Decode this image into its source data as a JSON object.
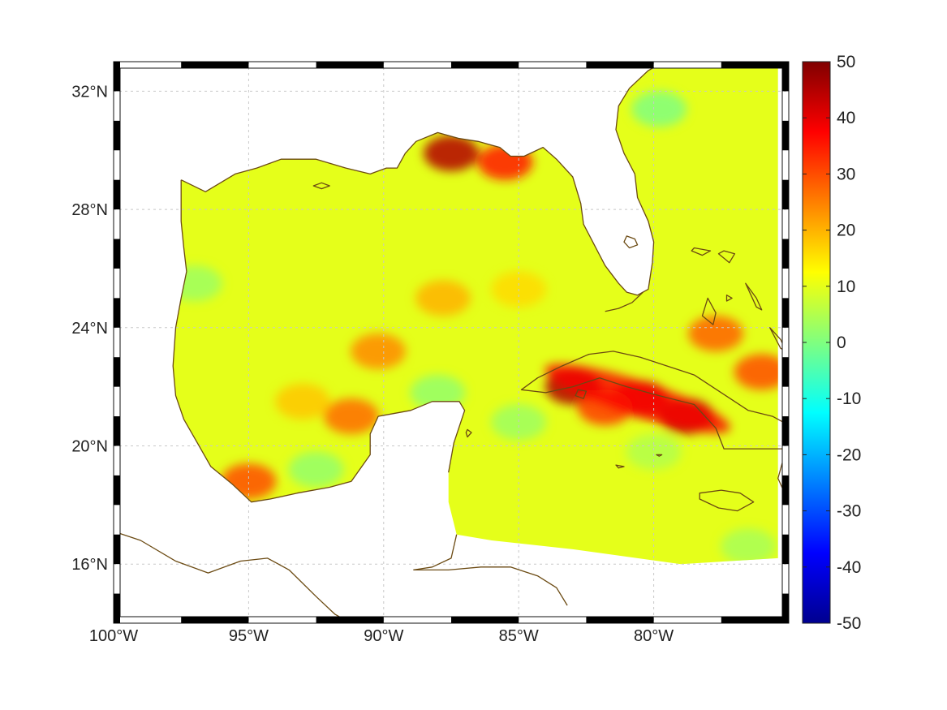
{
  "map": {
    "projection": "equirectangular",
    "lon_range": [
      -100,
      -75
    ],
    "lat_range": [
      14,
      33
    ],
    "grid": true,
    "frame_style": "alternating black/white border",
    "coastline_color": "#6b4a12",
    "x_ticks": [
      {
        "lon": -100,
        "label": "100°W"
      },
      {
        "lon": -95,
        "label": "95°W"
      },
      {
        "lon": -90,
        "label": "90°W"
      },
      {
        "lon": -85,
        "label": "85°W"
      },
      {
        "lon": -80,
        "label": "80°W"
      }
    ],
    "y_ticks": [
      {
        "lat": 32,
        "label": "32°N"
      },
      {
        "lat": 28,
        "label": "28°N"
      },
      {
        "lat": 24,
        "label": "24°N"
      },
      {
        "lat": 20,
        "label": "20°N"
      },
      {
        "lat": 16,
        "label": "16°N"
      }
    ],
    "field_background_value": 10,
    "field_anomalies": [
      {
        "lon": -87.5,
        "lat": 29.9,
        "value": 45
      },
      {
        "lon": -85.5,
        "lat": 29.6,
        "value": 35
      },
      {
        "lon": -83.0,
        "lat": 22.0,
        "value": 45
      },
      {
        "lon": -80.5,
        "lat": 21.6,
        "value": 42
      },
      {
        "lon": -78.8,
        "lat": 21.0,
        "value": 45
      },
      {
        "lon": -81.8,
        "lat": 21.3,
        "value": 32
      },
      {
        "lon": -77.7,
        "lat": 23.8,
        "value": 28
      },
      {
        "lon": -76.0,
        "lat": 22.5,
        "value": 30
      },
      {
        "lon": -91.2,
        "lat": 21.0,
        "value": 27
      },
      {
        "lon": -90.2,
        "lat": 23.2,
        "value": 24
      },
      {
        "lon": -87.8,
        "lat": 25.0,
        "value": 20
      },
      {
        "lon": -95.0,
        "lat": 18.8,
        "value": 30
      },
      {
        "lon": -85.0,
        "lat": 25.3,
        "value": 16
      },
      {
        "lon": -93.0,
        "lat": 21.5,
        "value": 18
      },
      {
        "lon": -79.8,
        "lat": 31.4,
        "value": 0
      },
      {
        "lon": -88.0,
        "lat": 21.8,
        "value": 2
      },
      {
        "lon": -85.0,
        "lat": 20.8,
        "value": 3
      },
      {
        "lon": -97.0,
        "lat": 25.5,
        "value": 3
      },
      {
        "lon": -92.5,
        "lat": 19.2,
        "value": 2
      },
      {
        "lon": -80.0,
        "lat": 19.8,
        "value": 5
      },
      {
        "lon": -76.5,
        "lat": 16.6,
        "value": 4
      }
    ]
  },
  "colorbar": {
    "min": -50,
    "max": 50,
    "colormap": "jet",
    "ticks": [
      {
        "value": 50,
        "label": "50"
      },
      {
        "value": 40,
        "label": "40"
      },
      {
        "value": 30,
        "label": "30"
      },
      {
        "value": 20,
        "label": "20"
      },
      {
        "value": 10,
        "label": "10"
      },
      {
        "value": 0,
        "label": "0"
      },
      {
        "value": -10,
        "label": "-10"
      },
      {
        "value": -20,
        "label": "-20"
      },
      {
        "value": -30,
        "label": "-30"
      },
      {
        "value": -40,
        "label": "-40"
      },
      {
        "value": -50,
        "label": "-50"
      }
    ]
  }
}
